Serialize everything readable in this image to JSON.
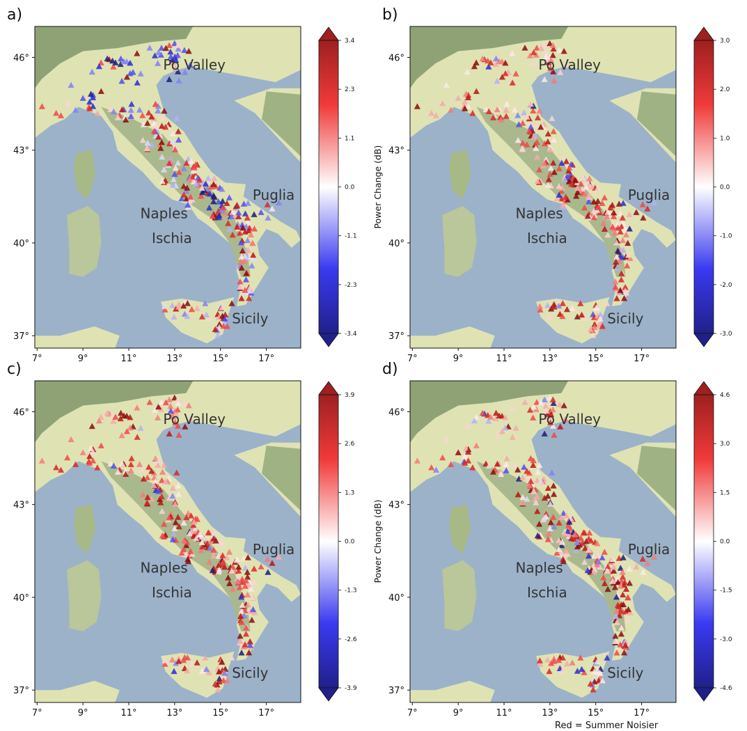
{
  "panels": [
    {
      "label": "a)",
      "colorbar": {
        "ticks": [
          "3.4",
          "2.3",
          "1.1",
          "0.0",
          "-1.1",
          "-2.3",
          "-3.4"
        ],
        "label": "Power Change (dB)"
      },
      "dominant": "mixed"
    },
    {
      "label": "b)",
      "colorbar": {
        "ticks": [
          "3.0",
          "2.0",
          "1.0",
          "0.0",
          "-1.0",
          "-2.0",
          "-3.0"
        ],
        "label": "Power Change (dB)"
      },
      "dominant": "red"
    },
    {
      "label": "c)",
      "colorbar": {
        "ticks": [
          "3.9",
          "2.6",
          "1.3",
          "0.0",
          "-1.3",
          "-2.6",
          "-3.9"
        ],
        "label": "Power Change (dB)"
      },
      "dominant": "red"
    },
    {
      "label": "d)",
      "colorbar": {
        "ticks": [
          "4.6",
          "3.0",
          "1.5",
          "0.0",
          "-1.5",
          "-3.0",
          "-4.6"
        ],
        "label": "Power Change (dB)"
      },
      "dominant": "mixed-red"
    }
  ],
  "lat_ticks": [
    "46°",
    "43°",
    "40°",
    "37°"
  ],
  "lon_ticks": [
    "7°",
    "9°",
    "11°",
    "13°",
    "15°",
    "17°"
  ],
  "regions": {
    "po": "Po Valley",
    "puglia": "Puglia",
    "naples": "Naples",
    "ischia": "Ischia",
    "sicily": "Sicily"
  },
  "footnote": "Red = Summer Noisier",
  "colors": {
    "sea": "#9cb2c9",
    "land": "#dfe3b3",
    "mountain": "#8ea276",
    "red": "#d41f1f",
    "blue": "#2b2bd8"
  }
}
